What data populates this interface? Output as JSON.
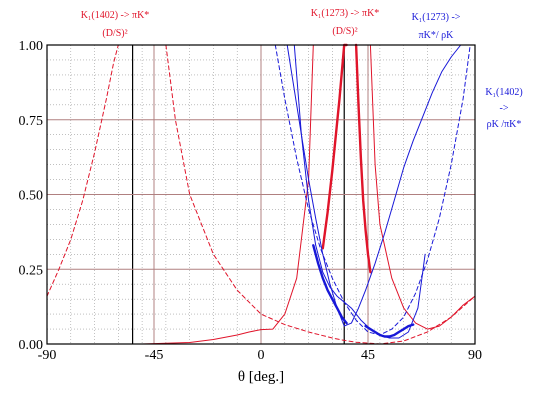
{
  "chart_data": {
    "type": "line",
    "xlabel": "θ [deg.]",
    "xlim": [
      -90,
      90
    ],
    "ylim": [
      0,
      1
    ],
    "x_ticks": [
      "-90",
      "-45",
      "0",
      "45",
      "90"
    ],
    "y_ticks": [
      "0.00",
      "0.25",
      "0.50",
      "0.75",
      "1.00"
    ],
    "x_minor_grid": [
      -80,
      -70,
      -60,
      -50,
      -40,
      -30,
      -20,
      -10,
      10,
      20,
      30,
      40,
      50,
      60,
      70,
      80
    ],
    "y_minor_grid": [
      0.05,
      0.1,
      0.15,
      0.2,
      0.3,
      0.35,
      0.4,
      0.45,
      0.55,
      0.6,
      0.65,
      0.7,
      0.8,
      0.85,
      0.9,
      0.95
    ],
    "grid": true,
    "annotations": [
      {
        "line1": "K₁(1402) -> πK*",
        "line2": "(D/S)²",
        "color": "#e0142a"
      },
      {
        "line1": "K₁(1273) -> πK*",
        "line2": "(D/S)²",
        "color": "#e0142a"
      },
      {
        "line1": "K₁(1273) ->",
        "line2": "πK*/ ρK",
        "color": "#1818d8"
      },
      {
        "line1": "K₁(1402)",
        "line2": "->",
        "line3": "ρK /πK*",
        "color": "#1818d8"
      }
    ],
    "reference_lines": [
      {
        "orientation": "vertical",
        "x": -54,
        "color": "#000000"
      },
      {
        "orientation": "vertical",
        "x": 35,
        "color": "#000000"
      },
      {
        "orientation": "vertical",
        "x": 0,
        "color": "#b08080"
      },
      {
        "orientation": "vertical",
        "x": 45,
        "color": "#b08080"
      },
      {
        "orientation": "vertical",
        "x": -45,
        "color": "#b08080"
      },
      {
        "orientation": "horizontal",
        "y": 0.25,
        "color": "#b08080"
      },
      {
        "orientation": "horizontal",
        "y": 0.5,
        "color": "#b08080"
      },
      {
        "orientation": "horizontal",
        "y": 0.75,
        "color": "#b08080"
      }
    ],
    "series": [
      {
        "color": "#e0142a",
        "style": "dashed",
        "x": [
          -90,
          -85,
          -80,
          -75,
          -70,
          -65,
          -62,
          -60
        ],
        "y": [
          0.16,
          0.25,
          0.35,
          0.48,
          0.64,
          0.82,
          0.94,
          1.0
        ]
      },
      {
        "color": "#e0142a",
        "style": "dashed",
        "x": [
          -40,
          -36,
          -30,
          -20,
          -10,
          0,
          10,
          20,
          30,
          35,
          40,
          50,
          60,
          70,
          80,
          90
        ],
        "y": [
          1.0,
          0.75,
          0.5,
          0.3,
          0.18,
          0.1,
          0.065,
          0.04,
          0.02,
          0.012,
          0.006,
          0.0,
          0.01,
          0.04,
          0.09,
          0.16
        ]
      },
      {
        "color": "#e0142a",
        "style": "solid",
        "x": [
          -90,
          -70,
          -50,
          -30,
          -20,
          -10,
          -5,
          0,
          5,
          10,
          15,
          20,
          22
        ],
        "y": [
          0.0,
          0.0,
          0.0,
          0.005,
          0.015,
          0.03,
          0.04,
          0.048,
          0.05,
          0.1,
          0.22,
          0.55,
          1.0
        ]
      },
      {
        "color": "#e0142a",
        "style": "solid",
        "x": [
          46,
          48,
          50,
          55,
          60,
          65,
          70,
          75,
          80,
          85,
          90
        ],
        "y": [
          1.0,
          0.6,
          0.4,
          0.22,
          0.12,
          0.07,
          0.05,
          0.06,
          0.09,
          0.13,
          0.16
        ]
      },
      {
        "color": "#e0142a",
        "style": "solid",
        "width": "thick",
        "x": [
          26,
          28,
          30,
          33,
          35,
          36
        ],
        "y": [
          0.32,
          0.44,
          0.58,
          0.82,
          1.0,
          1.0
        ]
      },
      {
        "color": "#e0142a",
        "style": "solid",
        "width": "thick",
        "x": [
          40,
          41,
          42,
          43,
          44,
          45,
          46
        ],
        "y": [
          1.0,
          0.8,
          0.62,
          0.48,
          0.38,
          0.3,
          0.24
        ]
      },
      {
        "color": "#1818d8",
        "style": "solid",
        "x": [
          11,
          14,
          17,
          20,
          23,
          26,
          29,
          32,
          35,
          38,
          41,
          44,
          48,
          52,
          56,
          60,
          64,
          68,
          72,
          76,
          80,
          84
        ],
        "y": [
          1.0,
          0.85,
          0.7,
          0.55,
          0.42,
          0.3,
          0.2,
          0.12,
          0.06,
          0.07,
          0.12,
          0.18,
          0.27,
          0.37,
          0.48,
          0.59,
          0.68,
          0.76,
          0.84,
          0.91,
          0.96,
          1.0
        ]
      },
      {
        "color": "#1818d8",
        "style": "solid",
        "x": [
          14,
          17,
          20,
          23,
          26,
          29,
          32,
          35,
          38,
          42,
          46,
          50,
          54,
          58,
          62,
          66,
          69
        ],
        "y": [
          1.0,
          0.7,
          0.48,
          0.33,
          0.24,
          0.19,
          0.16,
          0.14,
          0.12,
          0.08,
          0.05,
          0.03,
          0.02,
          0.02,
          0.04,
          0.12,
          0.3
        ]
      },
      {
        "color": "#1818d8",
        "style": "solid",
        "width": "thick",
        "x": [
          22,
          24,
          26,
          28,
          30,
          32,
          34,
          36
        ],
        "y": [
          0.33,
          0.27,
          0.22,
          0.18,
          0.15,
          0.12,
          0.09,
          0.07
        ]
      },
      {
        "color": "#1818d8",
        "style": "solid",
        "width": "thick",
        "x": [
          44,
          46,
          48,
          50,
          52,
          54,
          56,
          58,
          60,
          62,
          64
        ],
        "y": [
          0.06,
          0.05,
          0.04,
          0.03,
          0.025,
          0.025,
          0.03,
          0.04,
          0.05,
          0.06,
          0.065
        ]
      },
      {
        "color": "#1818d8",
        "style": "dashed",
        "x": [
          6,
          10,
          15,
          20,
          25,
          30,
          35,
          40,
          45,
          50,
          55,
          60,
          65,
          70,
          75,
          80,
          85,
          88
        ],
        "y": [
          1.0,
          0.82,
          0.62,
          0.45,
          0.32,
          0.22,
          0.14,
          0.08,
          0.04,
          0.03,
          0.05,
          0.09,
          0.17,
          0.28,
          0.42,
          0.6,
          0.82,
          1.0
        ]
      }
    ]
  }
}
